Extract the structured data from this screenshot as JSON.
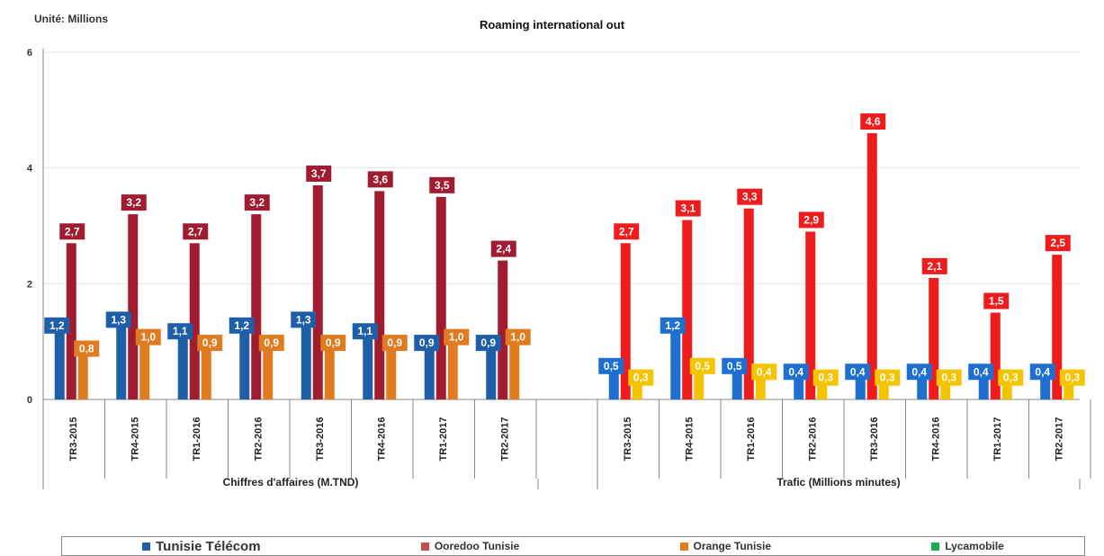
{
  "unit_label": "Unité: Millions",
  "chart_data": {
    "type": "bar",
    "title": "Roaming international out",
    "ylim": [
      0,
      6
    ],
    "y_ticks": [
      "0",
      "2",
      "4",
      "6"
    ],
    "grid": true,
    "legend_position": "bottom",
    "groups": [
      {
        "label": "Chiffres d'affaires (M.TND)",
        "categories": [
          "TR3-2015",
          "TR4-2015",
          "TR1-2016",
          "TR2-2016",
          "TR3-2016",
          "TR4-2016",
          "TR1-2017",
          "TR2-2017"
        ],
        "series": [
          {
            "name": "Tunisie Télécom",
            "values": [
              1.2,
              1.3,
              1.1,
              1.2,
              1.3,
              1.1,
              0.9,
              0.9
            ],
            "labels": [
              "1,2",
              "1,3",
              "1,1",
              "1,2",
              "1,3",
              "1,1",
              "0,9",
              "0,9"
            ]
          },
          {
            "name": "Ooredoo Tunisie",
            "values": [
              2.7,
              3.2,
              2.7,
              3.2,
              3.7,
              3.6,
              3.5,
              2.4
            ],
            "labels": [
              "2,7",
              "3,2",
              "2,7",
              "3,2",
              "3,7",
              "3,6",
              "3,5",
              "2,4"
            ]
          },
          {
            "name": "Orange Tunisie",
            "values": [
              0.8,
              1.0,
              0.9,
              0.9,
              0.9,
              0.9,
              1.0,
              1.0
            ],
            "labels": [
              "0,8",
              "1,0",
              "0,9",
              "0,9",
              "0,9",
              "0,9",
              "1,0",
              "1,0"
            ]
          }
        ]
      },
      {
        "label": "Trafic (Millions minutes)",
        "categories": [
          "TR3-2015",
          "TR4-2015",
          "TR1-2016",
          "TR2-2016",
          "TR3-2016",
          "TR4-2016",
          "TR1-2017",
          "TR2-2017"
        ],
        "series": [
          {
            "name": "Tunisie Télécom",
            "values": [
              0.5,
              1.2,
              0.5,
              0.4,
              0.4,
              0.4,
              0.4,
              0.4
            ],
            "labels": [
              "0,5",
              "1,2",
              "0,5",
              "0,4",
              "0,4",
              "0,4",
              "0,4",
              "0,4"
            ]
          },
          {
            "name": "Ooredoo Tunisie",
            "values": [
              2.7,
              3.1,
              3.3,
              2.9,
              4.6,
              2.1,
              1.5,
              2.5
            ],
            "labels": [
              "2,7",
              "3,1",
              "3,3",
              "2,9",
              "4,6",
              "2,1",
              "1,5",
              "2,5"
            ]
          },
          {
            "name": "Orange Tunisie",
            "values": [
              0.3,
              0.5,
              0.4,
              0.3,
              0.3,
              0.3,
              0.3,
              0.3
            ],
            "labels": [
              "0,3",
              "0,5",
              "0,4",
              "0,3",
              "0,3",
              "0,3",
              "0,3",
              "0,3"
            ]
          }
        ]
      }
    ],
    "legend": [
      {
        "name": "Tunisie Télécom",
        "color": "#1f5fa8"
      },
      {
        "name": "Ooredoo Tunisie",
        "color": "#c0504d"
      },
      {
        "name": "Orange Tunisie",
        "color": "#e07b20"
      },
      {
        "name": "Lycamobile",
        "color": "#1ea95a"
      }
    ]
  },
  "colors": {
    "g0": [
      "#1f5fa8",
      "#a01c30",
      "#e07b20"
    ],
    "g1": [
      "#1f6fd1",
      "#ee1c1c",
      "#f5c400"
    ]
  }
}
